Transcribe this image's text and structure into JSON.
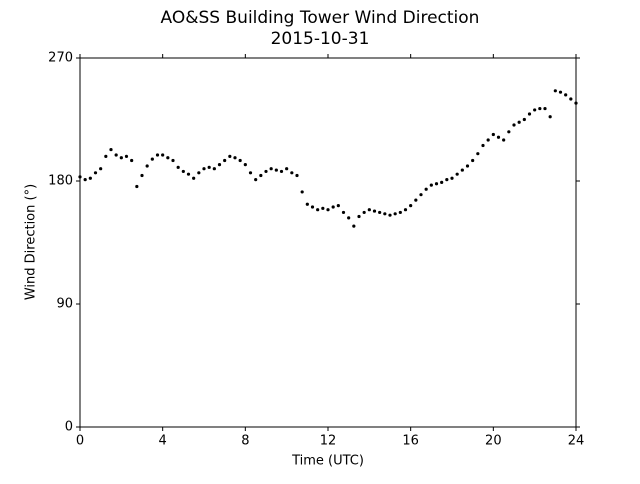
{
  "chart_data": {
    "type": "scatter",
    "title": "AO&SS Building Tower Wind Direction",
    "subtitle": "2015-10-31",
    "x_label": "Time (UTC)",
    "y_label": "Wind Direction (°)",
    "xlim": [
      0,
      24
    ],
    "xticks": [
      0,
      4,
      8,
      12,
      16,
      20,
      24
    ],
    "ylim": [
      0,
      270
    ],
    "yticks": [
      0,
      90,
      180,
      270
    ],
    "color": "#000000",
    "x": [
      0,
      0.25,
      0.5,
      0.75,
      1,
      1.25,
      1.5,
      1.75,
      2,
      2.25,
      2.5,
      2.75,
      3,
      3.25,
      3.5,
      3.75,
      4,
      4.25,
      4.5,
      4.75,
      5,
      5.25,
      5.5,
      5.75,
      6,
      6.25,
      6.5,
      6.75,
      7,
      7.25,
      7.5,
      7.75,
      8,
      8.25,
      8.5,
      8.75,
      9,
      9.25,
      9.5,
      9.75,
      10,
      10.25,
      10.5,
      10.75,
      11,
      11.25,
      11.5,
      11.75,
      12,
      12.25,
      12.5,
      12.75,
      13,
      13.25,
      13.5,
      13.75,
      14,
      14.25,
      14.5,
      14.75,
      15,
      15.25,
      15.5,
      15.75,
      16,
      16.25,
      16.5,
      16.75,
      17,
      17.25,
      17.5,
      17.75,
      18,
      18.25,
      18.5,
      18.75,
      19,
      19.25,
      19.5,
      19.75,
      20,
      20.25,
      20.5,
      20.75,
      21,
      21.25,
      21.5,
      21.75,
      22,
      22.25,
      22.5,
      22.75,
      23,
      23.25,
      23.5,
      23.75,
      24
    ],
    "values": [
      183,
      181,
      182,
      186,
      189,
      198,
      203,
      199,
      197,
      198,
      195,
      176,
      184,
      191,
      196,
      199,
      199,
      197,
      195,
      190,
      187,
      185,
      182,
      186,
      189,
      190,
      189,
      192,
      195,
      198,
      197,
      195,
      192,
      186,
      181,
      184,
      187,
      189,
      188,
      187,
      189,
      186,
      184,
      172,
      163,
      161,
      159,
      160,
      159,
      161,
      162,
      157,
      153,
      147,
      154,
      157,
      159,
      158,
      157,
      156,
      155,
      156,
      157,
      159,
      162,
      166,
      170,
      174,
      177,
      178,
      179,
      181,
      182,
      185,
      188,
      191,
      195,
      200,
      206,
      210,
      214,
      212,
      210,
      216,
      221,
      223,
      225,
      229,
      232,
      233,
      233,
      227,
      246,
      245,
      243,
      240,
      237
    ]
  }
}
